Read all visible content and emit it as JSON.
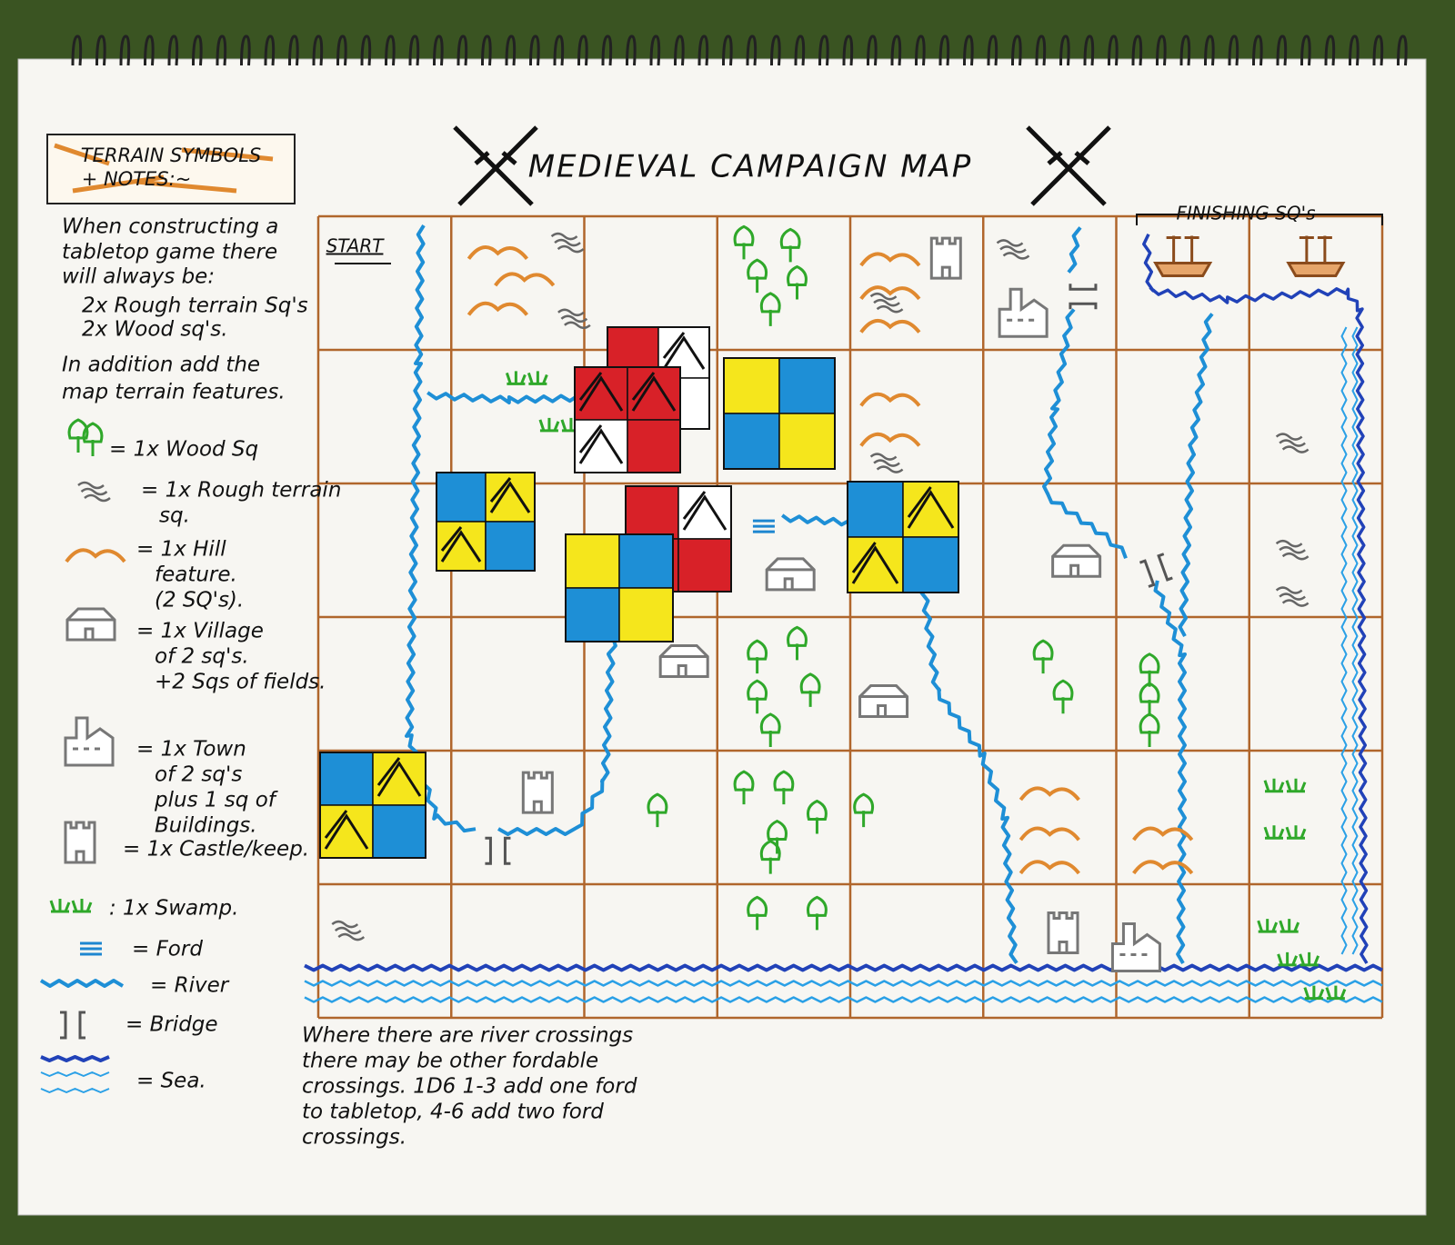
{
  "title": "MEDIEVAL CAMPAIGN MAP",
  "legend": {
    "title": [
      "TERRAIN SYMBOLS",
      "+ NOTES:~"
    ],
    "intro": [
      "When constructing a",
      "tabletop game there",
      "will always be:",
      "2x Rough terrain Sq's",
      "2x Wood sq's.",
      "In addition add the",
      "map terrain features."
    ],
    "items": [
      {
        "lines": [
          "= 1x Wood Sq"
        ]
      },
      {
        "lines": [
          "= 1x Rough terrain",
          "sq."
        ]
      },
      {
        "lines": [
          "= 1x Hill",
          "feature.",
          "(2 SQ's)."
        ]
      },
      {
        "lines": [
          "= 1x Village",
          "of 2 sq's.",
          "+2 Sqs of fields."
        ]
      },
      {
        "lines": [
          "= 1x Town",
          "of 2 sq's",
          "plus 1 sq of",
          "Buildings."
        ]
      },
      {
        "lines": [
          "= 1x Castle/keep."
        ]
      },
      {
        "lines": [
          ": 1x Swamp."
        ]
      },
      {
        "lines": [
          "= Ford"
        ]
      },
      {
        "lines": [
          "= River"
        ]
      },
      {
        "lines": [
          "= Bridge"
        ]
      },
      {
        "lines": [
          "= Sea."
        ]
      }
    ]
  },
  "map": {
    "start_label": "START",
    "finish_label": "FINISHING SQ's",
    "note": [
      "Where there are river crossings",
      "there may be other fordable",
      "crossings. 1D6 1-3 add one ford",
      "to tabletop, 4-6 add two ford",
      "crossings."
    ]
  }
}
